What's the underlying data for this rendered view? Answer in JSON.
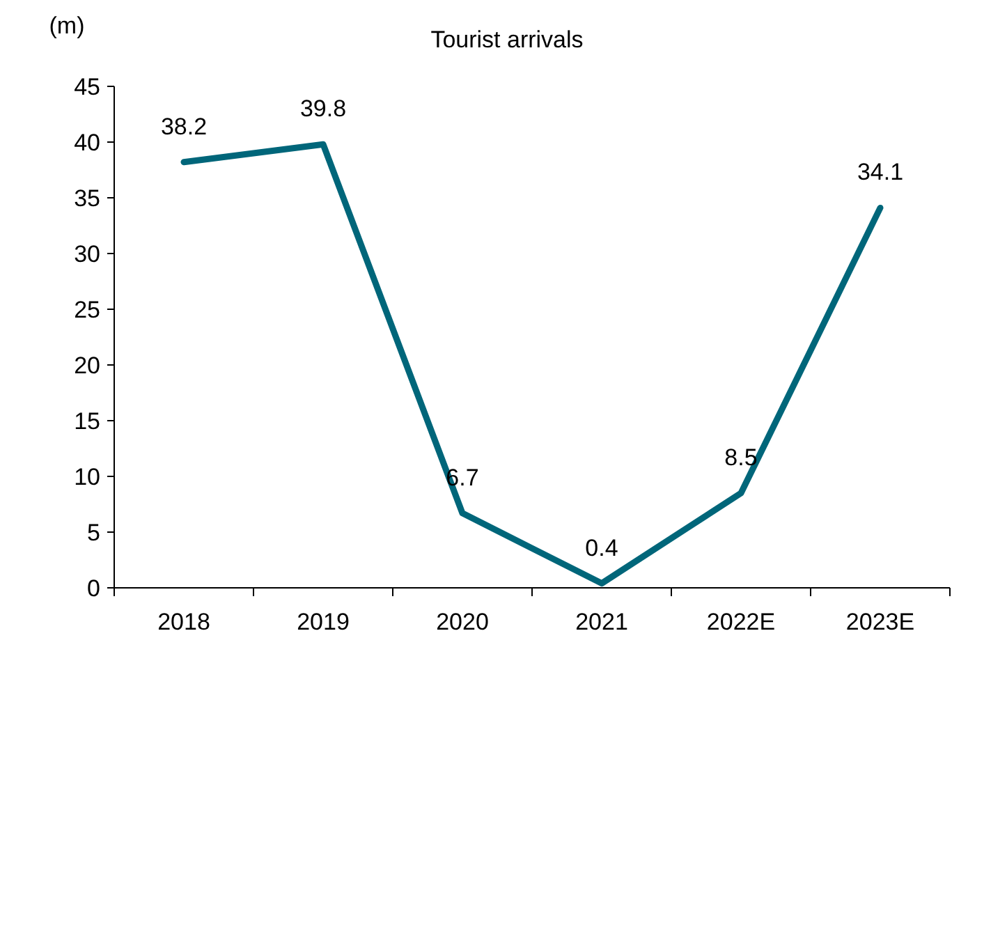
{
  "chart_data": {
    "type": "line",
    "title": "Tourist arrivals",
    "ylabel": "(m)",
    "categories": [
      "2018",
      "2019",
      "2020",
      "2021",
      "2022E",
      "2023E"
    ],
    "series": [
      {
        "color": "#00667a",
        "values": [
          38.2,
          39.8,
          6.7,
          0.4,
          8.5,
          34.1
        ]
      }
    ],
    "ylim": [
      0,
      45
    ],
    "yticks": [
      0,
      5,
      10,
      15,
      20,
      25,
      30,
      35,
      40,
      45
    ],
    "data_labels": true,
    "grid": false,
    "marker": "none",
    "line_style": "solid"
  }
}
